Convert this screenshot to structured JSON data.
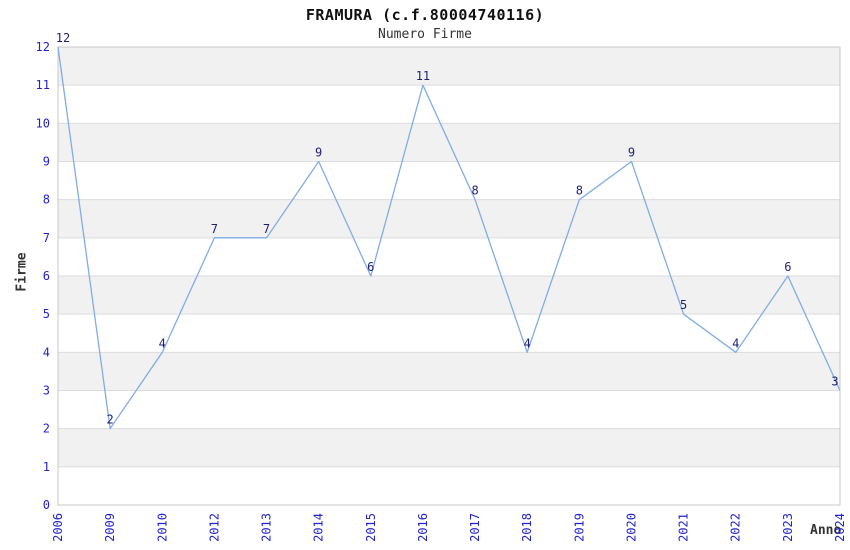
{
  "header": {
    "title": "FRAMURA (c.f.80004740116)",
    "subtitle": "Numero Firme"
  },
  "chart_data": {
    "type": "line",
    "title": "FRAMURA (c.f.80004740116)",
    "subtitle": "Numero Firme",
    "xlabel": "Anno",
    "ylabel": "Firme",
    "categories": [
      "2006",
      "2009",
      "2010",
      "2012",
      "2013",
      "2014",
      "2015",
      "2016",
      "2017",
      "2018",
      "2019",
      "2020",
      "2021",
      "2022",
      "2023",
      "2024"
    ],
    "values": [
      12,
      2,
      4,
      7,
      7,
      9,
      6,
      11,
      8,
      4,
      8,
      9,
      5,
      4,
      6,
      3
    ],
    "ylim": [
      0,
      12
    ],
    "y_ticks": [
      0,
      1,
      2,
      3,
      4,
      5,
      6,
      7,
      8,
      9,
      10,
      11,
      12
    ],
    "grid": "horizontal-only",
    "legend_position": "none",
    "point_labels_visible": true,
    "colors": {
      "line": "#7fade6",
      "tick_label": "#2323cc",
      "point_label": "#1f1f78",
      "band_fill": "#f1f1f1",
      "grid_line": "#dcdcdc",
      "plot_border": "#c8c8c8",
      "axis_title": "#333333",
      "title": "#111111"
    }
  }
}
